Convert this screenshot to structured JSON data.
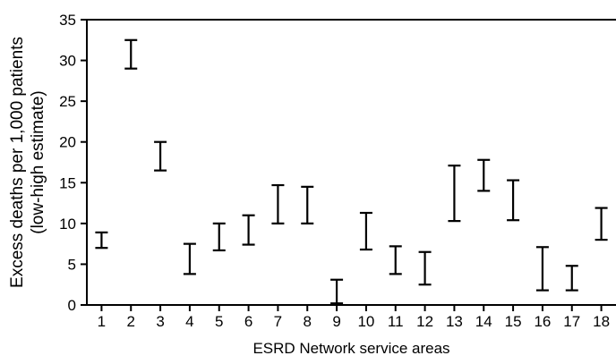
{
  "chart_data": {
    "type": "errorbar",
    "title": "",
    "xlabel": "ESRD Network service areas",
    "ylabel": "Excess deaths per 1,000 patients",
    "ylabel_sub": "(low-high estimate)",
    "ylim": [
      0,
      35
    ],
    "yticks": [
      0,
      5,
      10,
      15,
      20,
      25,
      30,
      35
    ],
    "grid": false,
    "categories": [
      "1",
      "2",
      "3",
      "4",
      "5",
      "6",
      "7",
      "8",
      "9",
      "10",
      "11",
      "12",
      "13",
      "14",
      "15",
      "16",
      "17",
      "18"
    ],
    "series": [
      {
        "low": [
          7.0,
          29.0,
          16.5,
          3.8,
          6.7,
          7.4,
          10.0,
          10.0,
          0.2,
          6.8,
          3.8,
          2.5,
          10.3,
          14.0,
          10.4,
          1.8,
          1.8,
          8.0
        ],
        "high": [
          8.9,
          32.5,
          20.0,
          7.5,
          10.0,
          11.0,
          14.7,
          14.5,
          3.1,
          11.3,
          7.2,
          6.5,
          17.1,
          17.8,
          15.3,
          7.1,
          4.8,
          11.9
        ]
      }
    ]
  }
}
